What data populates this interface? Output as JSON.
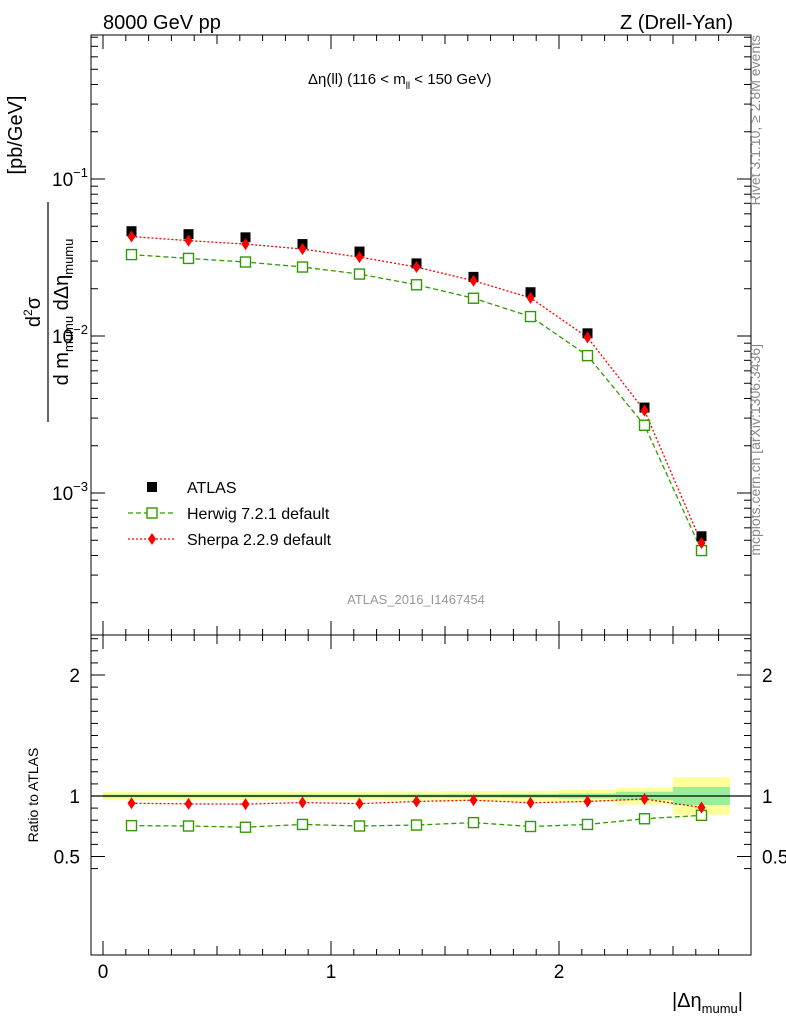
{
  "header": {
    "left": "8000 GeV pp",
    "right": "Z (Drell-Yan)"
  },
  "side_labels": {
    "rivet": "Rivet 3.1.10, ≥ 2.8M events",
    "mcplots": "mcplots.cern.ch [arXiv:1306.3436]"
  },
  "chart_data": [
    {
      "type": "scatter",
      "title": "Δη(ll) (116 < m_ll < 150 GeV)",
      "title_parts": {
        "main": "Δη(ll) (116 < m",
        "sub": "ll",
        "tail": " < 150 GeV)"
      },
      "analysis_label": "ATLAS_2016_I1467454",
      "ylabel": "d²σ / d m_mumu dΔη_mumu [pb/GeV]",
      "ylabel_parts": {
        "num": "d",
        "sup": "2",
        "sigma": "σ",
        "den1": "d m",
        "den_sub1": "mumu",
        "den2": " dΔη",
        "den_sub2": "mumu",
        "unit": "[pb/GeV]"
      },
      "yscale": "log",
      "ylim": [
        0.00017,
        0.9
      ],
      "xlim": [
        -0.05,
        2.8
      ],
      "x": [
        0.125,
        0.375,
        0.625,
        0.875,
        1.125,
        1.375,
        1.625,
        1.875,
        2.125,
        2.375,
        2.625
      ],
      "ytick_labels": [
        {
          "value": 0.1,
          "base": "10",
          "exp": "−1"
        },
        {
          "value": 0.01,
          "base": "10",
          "exp": "−2"
        },
        {
          "value": 0.001,
          "base": "10",
          "exp": "−3"
        }
      ],
      "legend_position": "lower-left",
      "series": [
        {
          "name": "ATLAS",
          "color": "#000000",
          "marker": "filled-square",
          "values": [
            0.0465,
            0.0445,
            0.0425,
            0.0385,
            0.0345,
            0.029,
            0.0238,
            0.019,
            0.0104,
            0.0035,
            0.00053
          ]
        },
        {
          "name": "Herwig 7.2.1 default",
          "color": "#339900",
          "marker": "open-square",
          "line": "dashed",
          "values": [
            0.033,
            0.0312,
            0.0296,
            0.0275,
            0.0248,
            0.0212,
            0.0174,
            0.0133,
            0.0075,
            0.0027,
            0.00043
          ]
        },
        {
          "name": "Sherpa 2.2.9 default",
          "color": "#ff0000",
          "marker": "filled-diamond",
          "line": "dotted",
          "values": [
            0.043,
            0.0405,
            0.0385,
            0.0358,
            0.0318,
            0.0275,
            0.0225,
            0.0175,
            0.0098,
            0.00335,
            0.00048
          ]
        }
      ]
    },
    {
      "type": "scatter",
      "ylabel": "Ratio to ATLAS",
      "xlabel": "|Δη_mumu|",
      "xlabel_parts": {
        "main": "|Δη",
        "sub": "mumu",
        "tail": "|"
      },
      "ylim": [
        0.35,
        2.35
      ],
      "xlim": [
        -0.05,
        2.8
      ],
      "xticks": [
        0,
        1,
        2
      ],
      "yticks": [
        0.5,
        1,
        2
      ],
      "x": [
        0.125,
        0.375,
        0.625,
        0.875,
        1.125,
        1.375,
        1.625,
        1.875,
        2.125,
        2.375,
        2.625
      ],
      "bin_edges": [
        0.0,
        0.25,
        0.5,
        0.75,
        1.0,
        1.25,
        1.5,
        1.75,
        2.0,
        2.25,
        2.5,
        2.75
      ],
      "uncertainty_bands": {
        "stat_color": "#99ee99",
        "total_color": "#ffff99",
        "stat": [
          0.012,
          0.012,
          0.012,
          0.012,
          0.012,
          0.013,
          0.014,
          0.016,
          0.02,
          0.035,
          0.075
        ],
        "total": [
          0.035,
          0.035,
          0.035,
          0.035,
          0.035,
          0.037,
          0.04,
          0.043,
          0.05,
          0.07,
          0.155
        ]
      },
      "series": [
        {
          "name": "Herwig 7.2.1 default",
          "color": "#339900",
          "values": [
            0.755,
            0.752,
            0.742,
            0.765,
            0.752,
            0.76,
            0.78,
            0.748,
            0.765,
            0.812,
            0.84
          ],
          "errors": [
            0,
            0,
            0,
            0,
            0,
            0,
            0,
            0,
            0,
            0,
            0.045
          ]
        },
        {
          "name": "Sherpa 2.2.9 default",
          "color": "#ff0000",
          "values": [
            0.94,
            0.935,
            0.933,
            0.946,
            0.937,
            0.955,
            0.965,
            0.944,
            0.955,
            0.975,
            0.905
          ],
          "errors": [
            0,
            0,
            0,
            0,
            0,
            0,
            0,
            0,
            0,
            0,
            0.035
          ]
        }
      ]
    }
  ]
}
